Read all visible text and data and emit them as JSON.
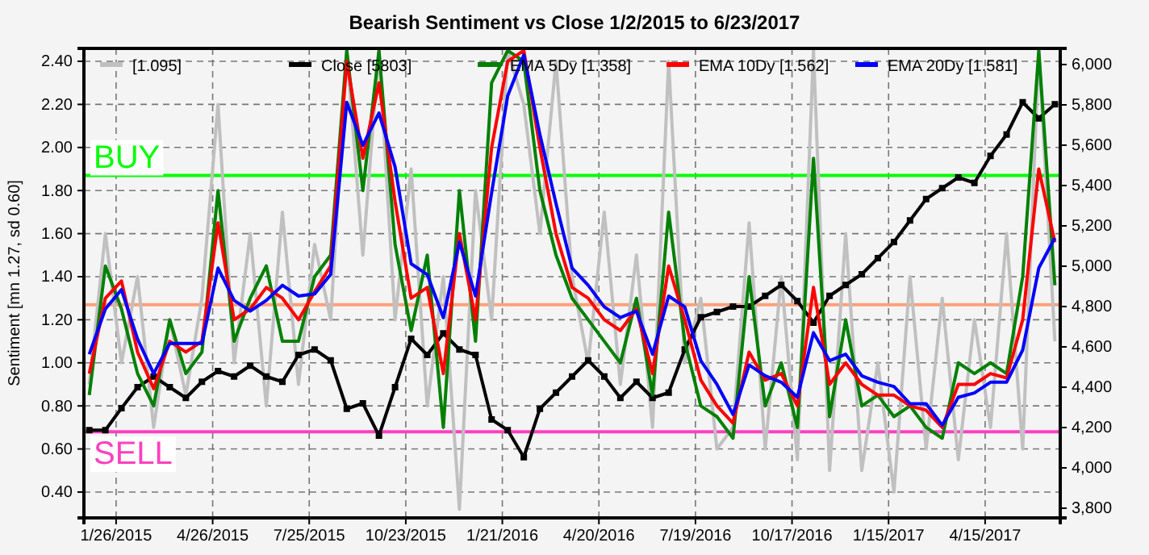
{
  "chart_data": {
    "type": "line",
    "title": "Bearish Sentiment vs Close 1/2/2015 to 6/23/2017",
    "ylabel": "Sentiment [mn 1.27, sd 0.60]",
    "x": [
      "2015-01-01",
      "2015-01-16",
      "2015-01-31",
      "2015-02-15",
      "2015-03-02",
      "2015-03-17",
      "2015-04-01",
      "2015-04-16",
      "2015-05-01",
      "2015-05-16",
      "2015-05-31",
      "2015-06-15",
      "2015-06-30",
      "2015-07-15",
      "2015-07-30",
      "2015-08-14",
      "2015-08-29",
      "2015-09-13",
      "2015-09-28",
      "2015-10-13",
      "2015-10-28",
      "2015-11-12",
      "2015-11-27",
      "2015-12-12",
      "2015-12-27",
      "2016-01-11",
      "2016-01-26",
      "2016-02-10",
      "2016-02-25",
      "2016-03-11",
      "2016-03-26",
      "2016-04-10",
      "2016-04-25",
      "2016-05-10",
      "2016-05-25",
      "2016-06-09",
      "2016-06-24",
      "2016-07-09",
      "2016-07-24",
      "2016-08-08",
      "2016-08-23",
      "2016-09-07",
      "2016-09-22",
      "2016-10-07",
      "2016-10-22",
      "2016-11-06",
      "2016-11-21",
      "2016-12-06",
      "2016-12-21",
      "2017-01-05",
      "2017-01-20",
      "2017-02-04",
      "2017-02-19",
      "2017-03-06",
      "2017-03-21",
      "2017-04-05",
      "2017-04-20",
      "2017-05-05",
      "2017-05-20",
      "2017-06-04",
      "2017-06-19"
    ],
    "series": [
      {
        "name": "[1.095]",
        "color": "#c0c0c0",
        "values": [
          0.9,
          1.6,
          1.0,
          1.4,
          0.7,
          1.2,
          0.85,
          1.3,
          2.2,
          1.0,
          1.6,
          0.8,
          1.7,
          0.9,
          1.55,
          1.2,
          2.45,
          1.5,
          2.45,
          1.2,
          1.9,
          0.8,
          1.4,
          0.32,
          1.8,
          1.2,
          2.45,
          2.2,
          1.6,
          2.4,
          1.4,
          1.0,
          1.7,
          0.9,
          1.5,
          0.7,
          2.4,
          1.0,
          1.3,
          0.6,
          0.7,
          1.65,
          0.6,
          1.4,
          0.55,
          2.45,
          0.5,
          1.6,
          0.5,
          1.0,
          0.4,
          1.4,
          0.6,
          1.3,
          0.55,
          1.2,
          0.7,
          1.6,
          0.6,
          2.45,
          1.1
        ]
      },
      {
        "name": "Close [5803]",
        "color": "#000000",
        "axis": "y2",
        "marker": "square",
        "values": [
          4187,
          4187,
          4296,
          4400,
          4453,
          4400,
          4347,
          4427,
          4480,
          4453,
          4507,
          4453,
          4427,
          4560,
          4587,
          4533,
          4293,
          4320,
          4160,
          4400,
          4640,
          4560,
          4667,
          4587,
          4560,
          4240,
          4187,
          4053,
          4293,
          4373,
          4453,
          4533,
          4453,
          4347,
          4427,
          4347,
          4373,
          4587,
          4747,
          4773,
          4800,
          4800,
          4853,
          4907,
          4827,
          4720,
          4853,
          4907,
          4960,
          5040,
          5120,
          5227,
          5333,
          5387,
          5440,
          5413,
          5547,
          5653,
          5813,
          5733,
          5803
        ]
      },
      {
        "name": "EMA 5Dy [1.358]",
        "color": "#008000",
        "values": [
          0.85,
          1.45,
          1.25,
          0.95,
          0.8,
          1.2,
          0.95,
          1.05,
          1.8,
          1.1,
          1.3,
          1.45,
          1.1,
          1.1,
          1.4,
          1.5,
          2.45,
          1.8,
          2.45,
          1.55,
          1.15,
          1.5,
          0.7,
          1.8,
          1.1,
          2.3,
          2.45,
          2.4,
          1.8,
          1.5,
          1.3,
          1.2,
          1.1,
          1.0,
          1.3,
          0.85,
          1.7,
          1.1,
          0.8,
          0.75,
          0.65,
          1.4,
          0.8,
          1.0,
          0.7,
          1.95,
          0.75,
          1.2,
          0.8,
          0.85,
          0.75,
          0.8,
          0.7,
          0.65,
          1.0,
          0.95,
          1.0,
          0.95,
          1.4,
          2.45,
          1.36
        ]
      },
      {
        "name": "EMA 10Dy [1.562]",
        "color": "#ff0000",
        "values": [
          0.95,
          1.3,
          1.38,
          1.05,
          0.88,
          1.1,
          1.05,
          1.1,
          1.65,
          1.2,
          1.25,
          1.35,
          1.3,
          1.2,
          1.33,
          1.45,
          2.4,
          1.95,
          2.3,
          1.75,
          1.3,
          1.35,
          0.95,
          1.6,
          1.2,
          2.0,
          2.4,
          2.45,
          2.0,
          1.6,
          1.35,
          1.3,
          1.2,
          1.15,
          1.25,
          0.95,
          1.45,
          1.2,
          0.92,
          0.8,
          0.72,
          1.05,
          0.92,
          0.95,
          0.8,
          1.35,
          0.9,
          1.0,
          0.9,
          0.85,
          0.85,
          0.8,
          0.78,
          0.7,
          0.9,
          0.9,
          0.95,
          0.93,
          1.2,
          1.9,
          1.56
        ]
      },
      {
        "name": "EMA 20Dy [1.581]",
        "color": "#0000ff",
        "values": [
          1.04,
          1.25,
          1.34,
          1.11,
          0.95,
          1.09,
          1.09,
          1.09,
          1.44,
          1.29,
          1.24,
          1.29,
          1.36,
          1.31,
          1.32,
          1.41,
          2.21,
          2.01,
          2.16,
          1.91,
          1.46,
          1.41,
          1.21,
          1.56,
          1.31,
          1.79,
          2.24,
          2.43,
          2.06,
          1.74,
          1.44,
          1.36,
          1.26,
          1.21,
          1.24,
          1.04,
          1.31,
          1.26,
          1.01,
          0.9,
          0.76,
          0.99,
          0.94,
          0.91,
          0.84,
          1.14,
          1.01,
          1.04,
          0.94,
          0.91,
          0.89,
          0.81,
          0.81,
          0.71,
          0.84,
          0.86,
          0.91,
          0.91,
          1.06,
          1.44,
          1.58
        ]
      }
    ],
    "xlim": [
      "2014-12-27",
      "2017-06-24"
    ],
    "xticks": [
      {
        "value": "2015-01-26",
        "label": "1/26/2015"
      },
      {
        "value": "2015-04-26",
        "label": "4/26/2015"
      },
      {
        "value": "2015-07-25",
        "label": "7/25/2015"
      },
      {
        "value": "2015-10-23",
        "label": "10/23/2015"
      },
      {
        "value": "2016-01-21",
        "label": "1/21/2016"
      },
      {
        "value": "2016-04-20",
        "label": "4/20/2016"
      },
      {
        "value": "2016-07-19",
        "label": "7/19/2016"
      },
      {
        "value": "2016-10-17",
        "label": "10/17/2016"
      },
      {
        "value": "2017-01-15",
        "label": "1/15/2017"
      },
      {
        "value": "2017-04-15",
        "label": "4/15/2017"
      }
    ],
    "ylim": [
      0.28,
      2.46
    ],
    "yticks": [
      {
        "value": 0.4,
        "label": "0.40"
      },
      {
        "value": 0.6,
        "label": "0.60"
      },
      {
        "value": 0.8,
        "label": "0.80"
      },
      {
        "value": 1.0,
        "label": "1.00"
      },
      {
        "value": 1.2,
        "label": "1.20"
      },
      {
        "value": 1.4,
        "label": "1.40"
      },
      {
        "value": 1.6,
        "label": "1.60"
      },
      {
        "value": 1.8,
        "label": "1.80"
      },
      {
        "value": 2.0,
        "label": "2.00"
      },
      {
        "value": 2.2,
        "label": "2.20"
      },
      {
        "value": 2.4,
        "label": "2.40"
      }
    ],
    "y2lim": [
      3752,
      6080
    ],
    "y2ticks": [
      {
        "value": 3800,
        "label": "3,800"
      },
      {
        "value": 4000,
        "label": "4,000"
      },
      {
        "value": 4200,
        "label": "4,200"
      },
      {
        "value": 4400,
        "label": "4,400"
      },
      {
        "value": 4600,
        "label": "4,600"
      },
      {
        "value": 4800,
        "label": "4,800"
      },
      {
        "value": 5000,
        "label": "5,000"
      },
      {
        "value": 5200,
        "label": "5,200"
      },
      {
        "value": 5400,
        "label": "5,400"
      },
      {
        "value": 5600,
        "label": "5,600"
      },
      {
        "value": 5800,
        "label": "5,800"
      },
      {
        "value": 6000,
        "label": "6,000"
      }
    ],
    "ref_lines": [
      {
        "axis": "y",
        "value": 1.87,
        "label": "BUY",
        "color": "#00ff00"
      },
      {
        "axis": "y",
        "value": 1.27,
        "label": null,
        "color": "#ffa07a"
      },
      {
        "axis": "y",
        "value": 0.68,
        "label": "SELL",
        "color": "#ff40c0"
      }
    ],
    "grid": true,
    "legend": "top"
  }
}
